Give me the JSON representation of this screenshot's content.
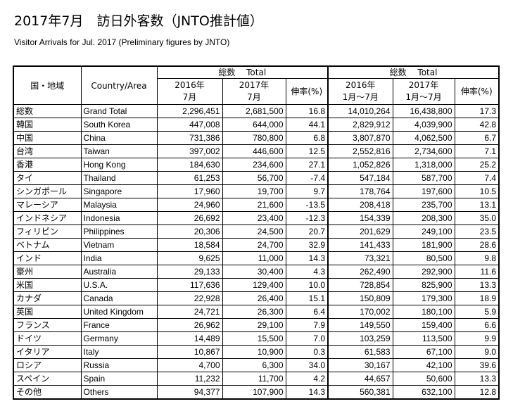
{
  "title": "2017年7月　訪日外客数（JNTO推計値）",
  "subtitle": "Visitor Arrivals for Jul. 2017 (Preliminary figures by JNTO)",
  "header": {
    "region_jp": "国・地域",
    "region_en": "Country/Area",
    "group_month": "総数　 Total",
    "group_cumulative": "総数　 Total",
    "col_2016_month_line1": "2016年",
    "col_2016_month_line2": "7月",
    "col_2017_month_line1": "2017年",
    "col_2017_month_line2": "7月",
    "col_growth": "伸率(%)",
    "col_2016_cum_line1": "2016年",
    "col_2016_cum_line2": "1月～7月",
    "col_2017_cum_line1": "2017年",
    "col_2017_cum_line2": "1月～7月",
    "col_growth_cum": "伸率(%)"
  },
  "rows": [
    {
      "jp": "総数",
      "en": "Grand Total",
      "m2016": "2,296,451",
      "m2017": "2,681,500",
      "mg": "16.8",
      "c2016": "14,010,264",
      "c2017": "16,438,800",
      "cg": "17.3"
    },
    {
      "jp": "韓国",
      "en": "South Korea",
      "m2016": "447,008",
      "m2017": "644,000",
      "mg": "44.1",
      "c2016": "2,829,912",
      "c2017": "4,039,900",
      "cg": "42.8"
    },
    {
      "jp": "中国",
      "en": "China",
      "m2016": "731,386",
      "m2017": "780,800",
      "mg": "6.8",
      "c2016": "3,807,870",
      "c2017": "4,062,500",
      "cg": "6.7"
    },
    {
      "jp": "台湾",
      "en": "Taiwan",
      "m2016": "397,002",
      "m2017": "446,600",
      "mg": "12.5",
      "c2016": "2,552,816",
      "c2017": "2,734,600",
      "cg": "7.1"
    },
    {
      "jp": "香港",
      "en": "Hong Kong",
      "m2016": "184,630",
      "m2017": "234,600",
      "mg": "27.1",
      "c2016": "1,052,826",
      "c2017": "1,318,000",
      "cg": "25.2"
    },
    {
      "jp": "タイ",
      "en": "Thailand",
      "m2016": "61,253",
      "m2017": "56,700",
      "mg": "-7.4",
      "c2016": "547,184",
      "c2017": "587,700",
      "cg": "7.4"
    },
    {
      "jp": "シンガポール",
      "en": "Singapore",
      "m2016": "17,960",
      "m2017": "19,700",
      "mg": "9.7",
      "c2016": "178,764",
      "c2017": "197,600",
      "cg": "10.5"
    },
    {
      "jp": "マレーシア",
      "en": "Malaysia",
      "m2016": "24,960",
      "m2017": "21,600",
      "mg": "-13.5",
      "c2016": "208,418",
      "c2017": "235,700",
      "cg": "13.1"
    },
    {
      "jp": "インドネシア",
      "en": "Indonesia",
      "m2016": "26,692",
      "m2017": "23,400",
      "mg": "-12.3",
      "c2016": "154,339",
      "c2017": "208,300",
      "cg": "35.0"
    },
    {
      "jp": "フィリピン",
      "en": "Philippines",
      "m2016": "20,306",
      "m2017": "24,500",
      "mg": "20.7",
      "c2016": "201,629",
      "c2017": "249,100",
      "cg": "23.5"
    },
    {
      "jp": "ベトナム",
      "en": "Vietnam",
      "m2016": "18,584",
      "m2017": "24,700",
      "mg": "32.9",
      "c2016": "141,433",
      "c2017": "181,900",
      "cg": "28.6"
    },
    {
      "jp": "インド",
      "en": "India",
      "m2016": "9,625",
      "m2017": "11,000",
      "mg": "14.3",
      "c2016": "73,321",
      "c2017": "80,500",
      "cg": "9.8"
    },
    {
      "jp": "豪州",
      "en": "Australia",
      "m2016": "29,133",
      "m2017": "30,400",
      "mg": "4.3",
      "c2016": "262,490",
      "c2017": "292,900",
      "cg": "11.6"
    },
    {
      "jp": "米国",
      "en": "U.S.A.",
      "m2016": "117,636",
      "m2017": "129,400",
      "mg": "10.0",
      "c2016": "728,854",
      "c2017": "825,900",
      "cg": "13.3"
    },
    {
      "jp": "カナダ",
      "en": "Canada",
      "m2016": "22,928",
      "m2017": "26,400",
      "mg": "15.1",
      "c2016": "150,809",
      "c2017": "179,300",
      "cg": "18.9"
    },
    {
      "jp": "英国",
      "en": "United Kingdom",
      "m2016": "24,721",
      "m2017": "26,300",
      "mg": "6.4",
      "c2016": "170,002",
      "c2017": "180,100",
      "cg": "5.9"
    },
    {
      "jp": "フランス",
      "en": "France",
      "m2016": "26,962",
      "m2017": "29,100",
      "mg": "7.9",
      "c2016": "149,550",
      "c2017": "159,400",
      "cg": "6.6"
    },
    {
      "jp": "ドイツ",
      "en": "Germany",
      "m2016": "14,489",
      "m2017": "15,500",
      "mg": "7.0",
      "c2016": "103,259",
      "c2017": "113,500",
      "cg": "9.9"
    },
    {
      "jp": "イタリア",
      "en": "Italy",
      "m2016": "10,867",
      "m2017": "10,900",
      "mg": "0.3",
      "c2016": "61,583",
      "c2017": "67,100",
      "cg": "9.0"
    },
    {
      "jp": "ロシア",
      "en": "Russia",
      "m2016": "4,700",
      "m2017": "6,300",
      "mg": "34.0",
      "c2016": "30,167",
      "c2017": "42,100",
      "cg": "39.6"
    },
    {
      "jp": "スペイン",
      "en": "Spain",
      "m2016": "11,232",
      "m2017": "11,700",
      "mg": "4.2",
      "c2016": "44,657",
      "c2017": "50,600",
      "cg": "13.3"
    },
    {
      "jp": "その他",
      "en": "Others",
      "m2016": "94,377",
      "m2017": "107,900",
      "mg": "14.3",
      "c2016": "560,381",
      "c2017": "632,100",
      "cg": "12.8"
    }
  ]
}
